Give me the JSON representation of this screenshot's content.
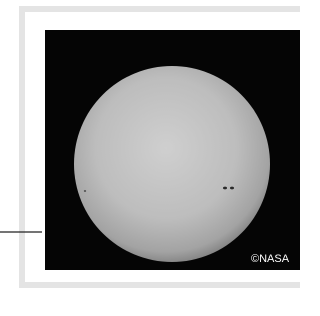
{
  "image": {
    "credit": "©NASA"
  }
}
